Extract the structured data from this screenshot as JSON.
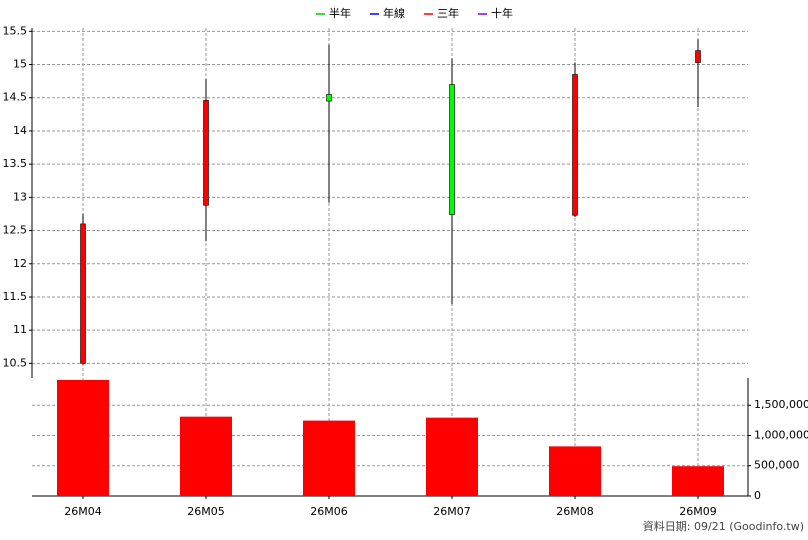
{
  "chart_data": {
    "type": "candlestick",
    "legend": [
      {
        "name": "半年",
        "color": "#00cc00"
      },
      {
        "name": "年線",
        "color": "#0000ff"
      },
      {
        "name": "三年",
        "color": "#ff0000"
      },
      {
        "name": "十年",
        "color": "#8000ff"
      }
    ],
    "categories": [
      "26M04",
      "26M05",
      "26M06",
      "26M07",
      "26M08",
      "26M09"
    ],
    "open": [
      10.5,
      12.88,
      14.55,
      14.7,
      12.73,
      15.03
    ],
    "high": [
      12.75,
      14.78,
      15.3,
      15.09,
      15.03,
      15.38
    ],
    "low": [
      10.48,
      12.34,
      12.92,
      11.39,
      12.7,
      14.36
    ],
    "close": [
      12.6,
      14.46,
      14.45,
      12.74,
      14.85,
      15.21
    ],
    "up_color": "#ff0000",
    "down_color": "#00ff00",
    "ylim": [
      10.28,
      15.55
    ],
    "yticks": [
      10.5,
      11,
      11.5,
      12,
      12.5,
      13,
      13.5,
      14,
      14.5,
      15,
      15.5
    ],
    "grid": true,
    "volume": {
      "values": [
        1918000,
        1311000,
        1246000,
        1295000,
        820000,
        492000
      ],
      "color": "#ff0000",
      "ylim": [
        0,
        1950000
      ],
      "yticks": [
        0,
        {
          "value": 500000,
          "label": "500,000"
        },
        {
          "value": 1000000,
          "label": "1,000,000"
        },
        {
          "value": 1500000,
          "label": "1,500,000"
        }
      ]
    },
    "note": "資料日期: 09/21  (Goodinfo.tw)"
  }
}
